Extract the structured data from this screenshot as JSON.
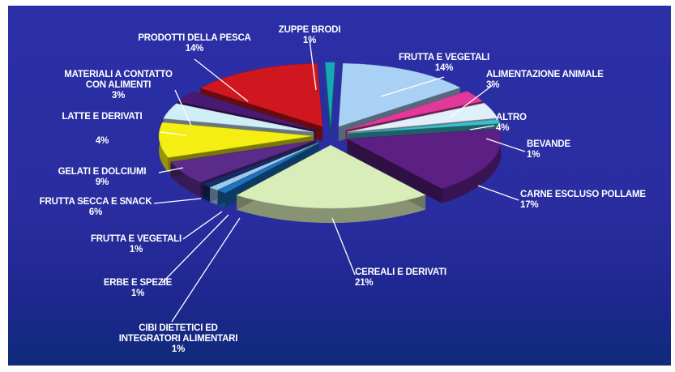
{
  "chart_data": {
    "type": "pie",
    "style": "3d-exploded",
    "title": "",
    "slices": [
      {
        "name": "ZUPPE BRODI",
        "value": 1,
        "label": "1%",
        "color": "#19a6b8"
      },
      {
        "name": "FRUTTA E VEGETALI",
        "value": 14,
        "label": "14%",
        "color": "#a9d1f5"
      },
      {
        "name": "ALIMENTAZIONE ANIMALE",
        "value": 3,
        "label": "3%",
        "color": "#e0399a"
      },
      {
        "name": "ALTRO",
        "value": 4,
        "label": "4%",
        "color": "#dff0fb"
      },
      {
        "name": "BEVANDE",
        "value": 1,
        "label": "1%",
        "color": "#3cc0cf"
      },
      {
        "name": "CARNE ESCLUSO POLLAME",
        "value": 17,
        "label": "17%",
        "color": "#5c1f84"
      },
      {
        "name": "CEREALI E DERIVATI",
        "value": 21,
        "label": "21%",
        "color": "#d9edb9"
      },
      {
        "name": "CIBI DIETETICI ED INTEGRATORI ALIMENTARI",
        "value": 1,
        "label": "1%",
        "color": "#1a74c4"
      },
      {
        "name": "ERBE E SPEZIE",
        "value": 1,
        "label": "1%",
        "color": "#9fc8ee"
      },
      {
        "name": "FRUTTA E VEGETALI",
        "value": 1,
        "label": "1%",
        "color": "#132e6a"
      },
      {
        "name": "FRUTTA SECCA E SNACK",
        "value": 6,
        "label": "6%",
        "color": "#5b2b8a"
      },
      {
        "name": "GELATI E DOLCIUMI",
        "value": 9,
        "label": "9%",
        "color": "#f4ee12"
      },
      {
        "name": "LATTE E DERIVATI",
        "value": 4,
        "label": "4%",
        "color": "#cfeef8"
      },
      {
        "name": "MATERIALI A CONTATTO CON ALIMENTI",
        "value": 3,
        "label": "3%",
        "color": "#4a1a72"
      },
      {
        "name": "PRODOTTI DELLA PESCA",
        "value": 14,
        "label": "14%",
        "color": "#d0161e"
      }
    ]
  }
}
